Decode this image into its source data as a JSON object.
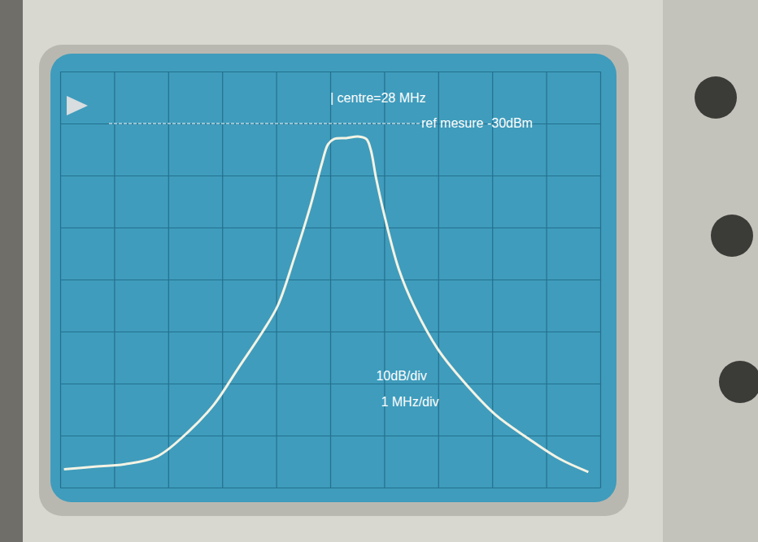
{
  "chart_data": {
    "type": "line",
    "x": [
      23.07,
      23.6,
      24.2,
      24.8,
      25.4,
      25.85,
      26.3,
      26.75,
      27.03,
      27.33,
      27.63,
      27.85,
      27.96,
      28.07,
      28.3,
      28.52,
      28.67,
      28.75,
      28.85,
      29.0,
      29.27,
      29.57,
      30.0,
      30.46,
      31.06,
      31.66,
      32.25,
      32.78
    ],
    "values": [
      -96.5,
      -96,
      -95.5,
      -94,
      -89,
      -84,
      -77,
      -70,
      -65,
      -56,
      -46,
      -37.5,
      -34,
      -33,
      -32.8,
      -32.5,
      -33,
      -35,
      -40.5,
      -47.5,
      -58,
      -65.5,
      -73.5,
      -79.5,
      -86,
      -90.5,
      -94.5,
      -97
    ],
    "color": "#f4f3e4",
    "xlim": [
      23,
      33
    ],
    "ylim": [
      -100,
      -20
    ],
    "xticks": [
      23,
      24,
      25,
      26,
      27,
      28,
      29,
      30,
      31,
      32,
      33
    ],
    "yticks": [
      -100,
      -90,
      -80,
      -70,
      -60,
      -50,
      -40,
      -30,
      -20
    ],
    "grid": true,
    "tick_labels": false,
    "reference_line": {
      "y": -30,
      "label": "ref mesure -30dBm",
      "line_style": "dashed"
    },
    "annotations": [
      {
        "text": "| centre=28 MHz",
        "x": 28
      },
      {
        "text": "10dB/div"
      },
      {
        "text": "1 MHz/div"
      }
    ]
  }
}
